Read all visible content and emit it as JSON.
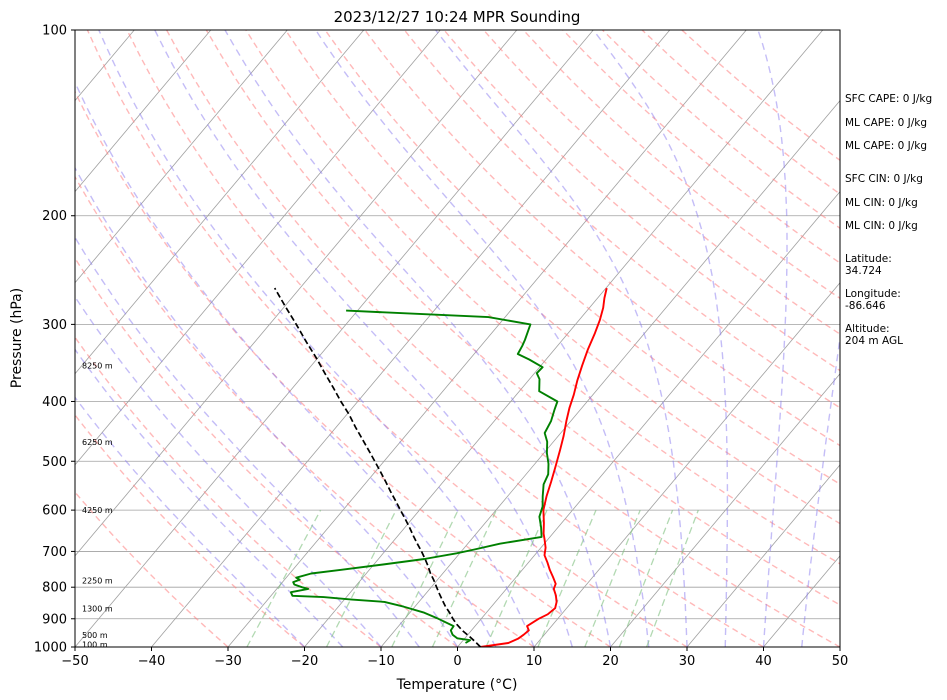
{
  "chart_data": {
    "type": "line",
    "subtype": "skew-t log-p sounding",
    "title": "2023/12/27 10:24 MPR Sounding",
    "xlabel": "Temperature (°C)",
    "ylabel": "Pressure (hPa)",
    "xlim": [
      -50,
      50
    ],
    "ylim": [
      1000,
      100
    ],
    "y_scale": "log",
    "x_ticks": [
      -50,
      -40,
      -30,
      -20,
      -10,
      0,
      10,
      20,
      30,
      40,
      50
    ],
    "x_tick_labels": [
      "−50",
      "−40",
      "−30",
      "−20",
      "−10",
      "0",
      "10",
      "20",
      "30",
      "40",
      "50"
    ],
    "y_ticks": [
      1000,
      900,
      800,
      700,
      600,
      500,
      400,
      300,
      200,
      100
    ],
    "y_tick_labels": [
      "1000",
      "900",
      "800",
      "700",
      "600",
      "500",
      "400",
      "300",
      "200",
      "100"
    ],
    "grid": true,
    "colors": {
      "temperature": "#ff0000",
      "dewpoint": "#008000",
      "parcel": "#000000",
      "isotherm": "#a0a0a0",
      "dry_adiabat": "#ff8080",
      "moist_adiabat": "#8a7cf0",
      "mixing_ratio": "#7fbf7f"
    },
    "series": [
      {
        "key": "temperature",
        "points": [
          [
            1000,
            3.0
          ],
          [
            985,
            6.2
          ],
          [
            970,
            7.0
          ],
          [
            955,
            7.3
          ],
          [
            940,
            7.5
          ],
          [
            925,
            6.8
          ],
          [
            900,
            7.5
          ],
          [
            885,
            8.2
          ],
          [
            865,
            8.5
          ],
          [
            845,
            8.0
          ],
          [
            825,
            7.2
          ],
          [
            805,
            6.2
          ],
          [
            790,
            5.9
          ],
          [
            770,
            4.8
          ],
          [
            750,
            3.6
          ],
          [
            730,
            2.5
          ],
          [
            710,
            1.3
          ],
          [
            690,
            0.6
          ],
          [
            670,
            -0.4
          ],
          [
            655,
            -1.2
          ],
          [
            630,
            -2.3
          ],
          [
            600,
            -3.8
          ],
          [
            570,
            -4.9
          ],
          [
            540,
            -5.9
          ],
          [
            510,
            -7.0
          ],
          [
            480,
            -8.2
          ],
          [
            455,
            -9.3
          ],
          [
            430,
            -10.6
          ],
          [
            410,
            -11.6
          ],
          [
            390,
            -12.5
          ],
          [
            370,
            -13.6
          ],
          [
            350,
            -14.6
          ],
          [
            330,
            -15.6
          ],
          [
            310,
            -16.5
          ],
          [
            295,
            -17.3
          ],
          [
            282,
            -18.2
          ],
          [
            272,
            -19.1
          ],
          [
            262,
            -19.9
          ]
        ]
      },
      {
        "key": "dewpoint",
        "points": [
          [
            985,
            0.6
          ],
          [
            975,
            0.9
          ],
          [
            968,
            -1.0
          ],
          [
            955,
            -2.0
          ],
          [
            940,
            -2.7
          ],
          [
            925,
            -2.8
          ],
          [
            900,
            -5.6
          ],
          [
            880,
            -8.1
          ],
          [
            860,
            -11.5
          ],
          [
            845,
            -14.5
          ],
          [
            838,
            -19.0
          ],
          [
            830,
            -23.0
          ],
          [
            826,
            -27.2
          ],
          [
            815,
            -27.8
          ],
          [
            805,
            -25.9
          ],
          [
            800,
            -26.9
          ],
          [
            792,
            -28.2
          ],
          [
            785,
            -28.6
          ],
          [
            778,
            -28.0
          ],
          [
            772,
            -28.7
          ],
          [
            760,
            -27.2
          ],
          [
            750,
            -23.8
          ],
          [
            735,
            -18.8
          ],
          [
            720,
            -14.0
          ],
          [
            705,
            -10.4
          ],
          [
            695,
            -8.5
          ],
          [
            680,
            -5.8
          ],
          [
            663,
            -1.1
          ],
          [
            640,
            -2.2
          ],
          [
            615,
            -3.6
          ],
          [
            592,
            -4.3
          ],
          [
            570,
            -5.4
          ],
          [
            545,
            -6.6
          ],
          [
            525,
            -7.1
          ],
          [
            505,
            -8.2
          ],
          [
            485,
            -9.6
          ],
          [
            465,
            -10.8
          ],
          [
            450,
            -12.1
          ],
          [
            430,
            -12.6
          ],
          [
            412,
            -13.4
          ],
          [
            400,
            -13.9
          ],
          [
            385,
            -17.4
          ],
          [
            368,
            -18.7
          ],
          [
            360,
            -19.7
          ],
          [
            352,
            -19.6
          ],
          [
            342,
            -22.2
          ],
          [
            335,
            -24.3
          ],
          [
            325,
            -24.6
          ],
          [
            318,
            -24.9
          ],
          [
            300,
            -25.9
          ],
          [
            292,
            -32.2
          ],
          [
            285,
            -51.5
          ]
        ]
      },
      {
        "key": "parcel",
        "points": [
          [
            1000,
            3.0
          ],
          [
            980,
            1.7
          ],
          [
            960,
            0.3
          ],
          [
            940,
            -1.2
          ],
          [
            920,
            -2.5
          ],
          [
            900,
            -3.7
          ],
          [
            880,
            -4.8
          ],
          [
            860,
            -6.0
          ],
          [
            840,
            -7.1
          ],
          [
            820,
            -8.2
          ],
          [
            800,
            -9.3
          ],
          [
            780,
            -10.4
          ],
          [
            760,
            -11.6
          ],
          [
            740,
            -12.7
          ],
          [
            720,
            -13.9
          ],
          [
            700,
            -15.2
          ],
          [
            680,
            -16.6
          ],
          [
            660,
            -18.0
          ],
          [
            640,
            -19.4
          ],
          [
            620,
            -20.9
          ],
          [
            600,
            -22.5
          ],
          [
            580,
            -24.1
          ],
          [
            560,
            -25.8
          ],
          [
            540,
            -27.5
          ],
          [
            520,
            -29.3
          ],
          [
            500,
            -31.2
          ],
          [
            480,
            -33.2
          ],
          [
            460,
            -35.3
          ],
          [
            440,
            -37.5
          ],
          [
            420,
            -39.7
          ],
          [
            400,
            -42.2
          ],
          [
            380,
            -44.7
          ],
          [
            360,
            -47.4
          ],
          [
            340,
            -50.2
          ],
          [
            320,
            -53.3
          ],
          [
            300,
            -56.5
          ],
          [
            280,
            -60.0
          ],
          [
            262,
            -63.3
          ]
        ]
      }
    ],
    "height_labels": [
      {
        "p": 990,
        "label": "100 m"
      },
      {
        "p": 957,
        "label": "500 m"
      },
      {
        "p": 866,
        "label": "1300 m"
      },
      {
        "p": 780,
        "label": "2250 m"
      },
      {
        "p": 600,
        "label": "4250 m"
      },
      {
        "p": 465,
        "label": "6250 m"
      },
      {
        "p": 350,
        "label": "8250 m"
      }
    ],
    "annotations": [
      "SFC CAPE: 0 J/kg",
      "ML CAPE: 0 J/kg",
      "ML CAPE: 0 J/kg",
      "SFC CIN: 0 J/kg",
      "ML CIN: 0 J/kg",
      "ML CIN: 0 J/kg",
      "Latitude:",
      "34.724",
      "Longitude:",
      "-86.646",
      "Altitude:",
      "204 m AGL"
    ]
  }
}
